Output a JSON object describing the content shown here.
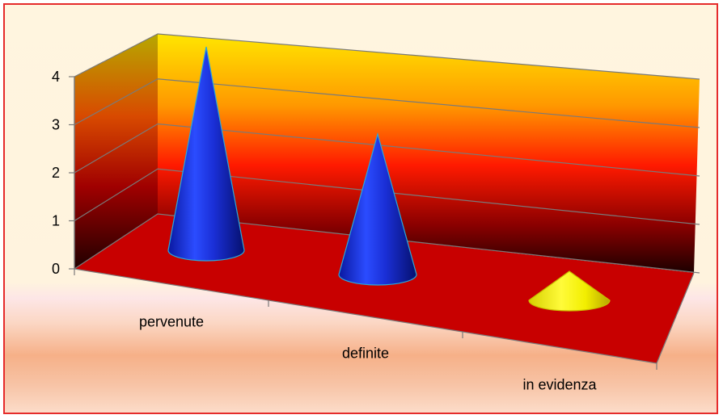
{
  "chart_data": {
    "type": "bar",
    "shape": "cone-3d",
    "title": "",
    "xlabel": "",
    "ylabel": "",
    "categories": [
      "pervenute",
      "definite",
      "in evidenza"
    ],
    "values": [
      4.2,
      2.9,
      0.6
    ],
    "ylim": [
      0,
      4
    ],
    "yticks": [
      0,
      1,
      2,
      3,
      4
    ],
    "grid": true,
    "legend": "none",
    "colors": {
      "bars": [
        "#1a2fd6",
        "#1a2fd6",
        "#f2ee00"
      ],
      "floor": "#c80000",
      "border": "#e52b2b"
    }
  }
}
